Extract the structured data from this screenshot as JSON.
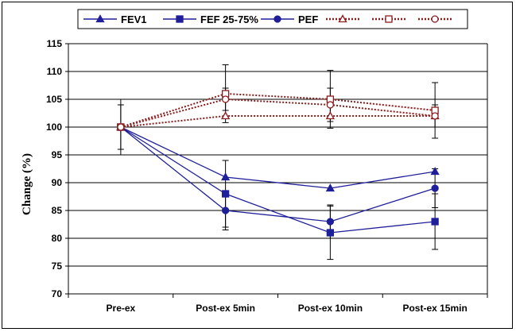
{
  "chart_data": {
    "type": "line",
    "ylabel": "Change (%)",
    "xlabel": "",
    "categories": [
      "Pre-ex",
      "Post-ex 5min",
      "Post-ex 10min",
      "Post-ex 15min"
    ],
    "ylim": [
      70,
      115
    ],
    "yticks": [
      70,
      75,
      80,
      85,
      90,
      95,
      100,
      105,
      110,
      115
    ],
    "grid": "horizontal",
    "legend_position": "top",
    "series": [
      {
        "name": "FEV1",
        "marker": "triangle",
        "filled": true,
        "style": "solid",
        "color": "#1f1f9a",
        "values": [
          100,
          91,
          89,
          92
        ],
        "error": [
          null,
          null,
          null,
          null
        ]
      },
      {
        "name": "FEF 25-75%",
        "marker": "square",
        "filled": true,
        "style": "solid",
        "color": "#1f1f9a",
        "values": [
          100,
          88,
          81,
          83
        ],
        "error": [
          null,
          6,
          4.8,
          5
        ]
      },
      {
        "name": "PEF",
        "marker": "circle",
        "filled": true,
        "style": "solid",
        "color": "#1f1f9a",
        "values": [
          100,
          85,
          83,
          89
        ],
        "error": [
          null,
          3.5,
          3,
          3.5
        ]
      },
      {
        "name": "",
        "marker": "triangle",
        "filled": false,
        "style": "dotted",
        "color": "#8b1a1a",
        "values": [
          100,
          102,
          102,
          102
        ],
        "error": [
          5,
          null,
          null,
          null
        ]
      },
      {
        "name": "",
        "marker": "square",
        "filled": false,
        "style": "dotted",
        "color": "#8b1a1a",
        "values": [
          100,
          106,
          105,
          103
        ],
        "error": [
          4,
          5.2,
          5.2,
          5
        ]
      },
      {
        "name": "",
        "marker": "circle",
        "filled": false,
        "style": "dotted",
        "color": "#8b1a1a",
        "values": [
          100,
          105,
          104,
          102
        ],
        "error": [
          null,
          2,
          3,
          2
        ]
      }
    ]
  }
}
